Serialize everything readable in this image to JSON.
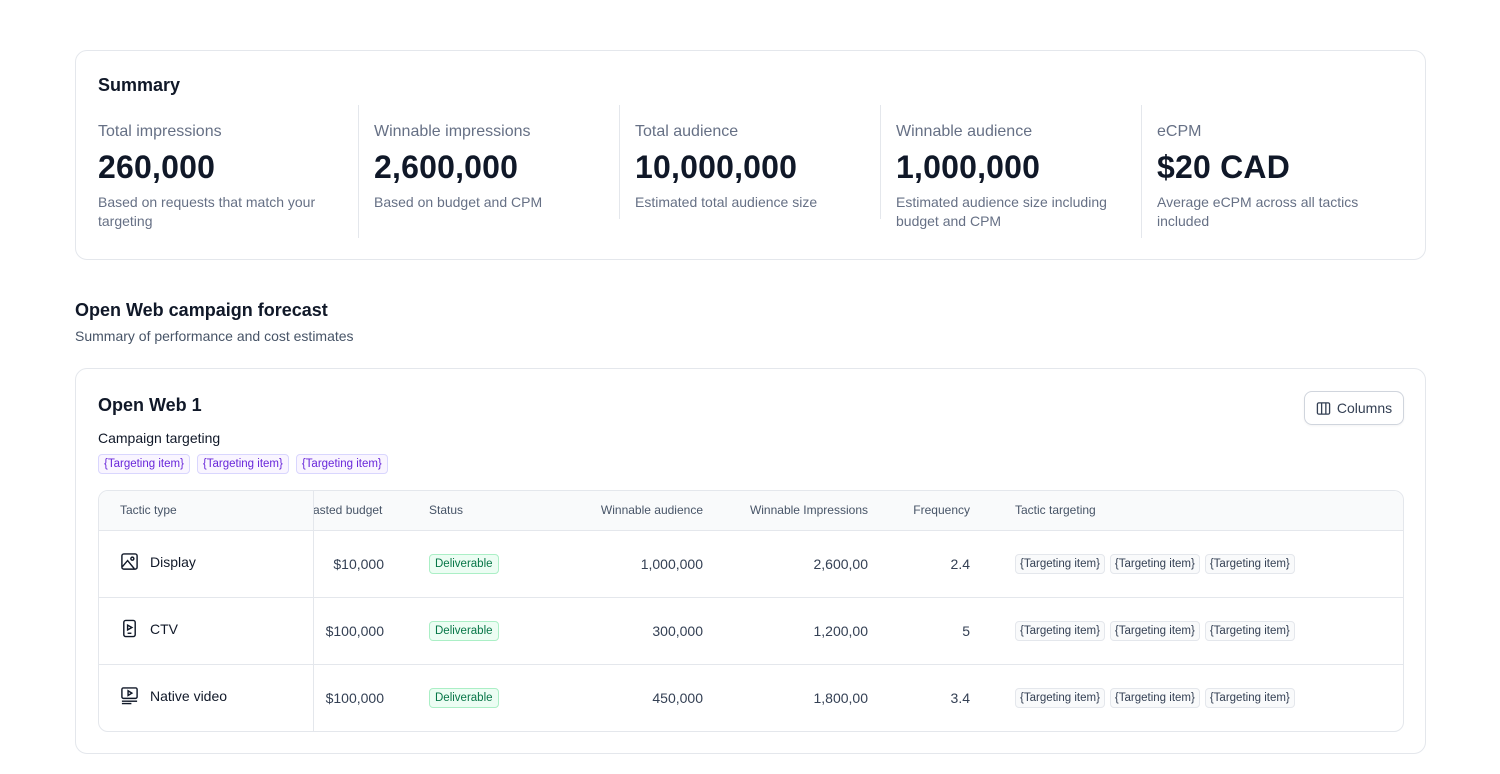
{
  "summary": {
    "title": "Summary",
    "metrics": [
      {
        "label": "Total impressions",
        "value": "260,000",
        "description": "Based on requests that match your targeting"
      },
      {
        "label": "Winnable impressions",
        "value": "2,600,000",
        "description": "Based on budget and CPM"
      },
      {
        "label": "Total audience",
        "value": "10,000,000",
        "description": "Estimated total audience size"
      },
      {
        "label": "Winnable audience",
        "value": "1,000,000",
        "description": "Estimated audience size including budget and CPM"
      },
      {
        "label": "eCPM",
        "value": "$20 CAD",
        "description": "Average eCPM across all tactics included"
      }
    ]
  },
  "forecast": {
    "title": "Open Web campaign forecast",
    "subtitle": "Summary of performance and cost estimates"
  },
  "campaign": {
    "title": "Open Web 1",
    "columns_button": "Columns",
    "targeting_label": "Campaign targeting",
    "targeting_tags": [
      "{Targeting item}",
      "{Targeting item}",
      "{Targeting item}"
    ]
  },
  "table": {
    "headers": {
      "tactic_type": "Tactic type",
      "budget": "asted budget",
      "status": "Status",
      "winnable_audience": "Winnable audience",
      "winnable_impressions": "Winnable Impressions",
      "frequency": "Frequency",
      "tactic_targeting": "Tactic targeting"
    },
    "rows": [
      {
        "icon": "image-icon",
        "tactic": "Display",
        "budget": "$10,000",
        "status": "Deliverable",
        "winnable_audience": "1,000,000",
        "winnable_impressions": "2,600,00",
        "frequency": "2.4",
        "tags": [
          "{Targeting item}",
          "{Targeting item}",
          "{Targeting item}"
        ]
      },
      {
        "icon": "ctv-icon",
        "tactic": "CTV",
        "budget": "$100,000",
        "status": "Deliverable",
        "winnable_audience": "300,000",
        "winnable_impressions": "1,200,00",
        "frequency": "5",
        "tags": [
          "{Targeting item}",
          "{Targeting item}",
          "{Targeting item}"
        ]
      },
      {
        "icon": "native-video-icon",
        "tactic": "Native video",
        "budget": "$100,000",
        "status": "Deliverable",
        "winnable_audience": "450,000",
        "winnable_impressions": "1,800,00",
        "frequency": "3.4",
        "tags": [
          "{Targeting item}",
          "{Targeting item}",
          "{Targeting item}"
        ]
      }
    ]
  },
  "colors": {
    "status_green": "#067647",
    "tag_purple": "#6927da",
    "border": "#e4e7ec"
  }
}
